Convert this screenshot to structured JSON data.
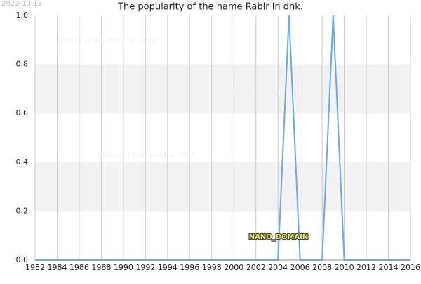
{
  "chart_data": {
    "type": "line",
    "title": "The popularity of the name Rabir in dnk.",
    "date_stamp": "2023-10-13",
    "watermarks": [
      "Names of the World © 2023",
      "Names of the World © 2023",
      "Names of the World © 2023"
    ],
    "annotation": "NANO_DOMAIN",
    "x": [
      1982,
      1983,
      1984,
      1985,
      1986,
      1987,
      1988,
      1989,
      1990,
      1991,
      1992,
      1993,
      1994,
      1995,
      1996,
      1997,
      1998,
      1999,
      2000,
      2001,
      2002,
      2003,
      2004,
      2005,
      2006,
      2007,
      2008,
      2009,
      2010,
      2011,
      2012,
      2013,
      2014,
      2015,
      2016
    ],
    "series": [
      {
        "name": "Rabir",
        "color": "#6aaae8",
        "values": [
          0,
          0,
          0,
          0,
          0,
          0,
          0,
          0,
          0,
          0,
          0,
          0,
          0,
          0,
          0,
          0,
          0,
          0,
          0,
          0,
          0,
          0,
          0,
          1,
          0,
          0,
          0,
          1,
          0,
          0,
          0,
          0,
          0,
          0,
          0
        ]
      }
    ],
    "xlim": [
      1982,
      2016
    ],
    "xticks": [
      1982,
      1984,
      1986,
      1988,
      1990,
      1992,
      1994,
      1996,
      1998,
      2000,
      2002,
      2004,
      2006,
      2008,
      2010,
      2012,
      2014,
      2016
    ],
    "ylim": [
      0,
      1
    ],
    "yticks": [
      {
        "value": 0,
        "label": "0.0"
      },
      {
        "value": 0.2,
        "label": "0.2"
      },
      {
        "value": 0.4,
        "label": "0.4"
      },
      {
        "value": 0.6,
        "label": "0.6"
      },
      {
        "value": 0.8,
        "label": "0.8"
      },
      {
        "value": 1,
        "label": "1.0"
      }
    ],
    "grid": true
  }
}
